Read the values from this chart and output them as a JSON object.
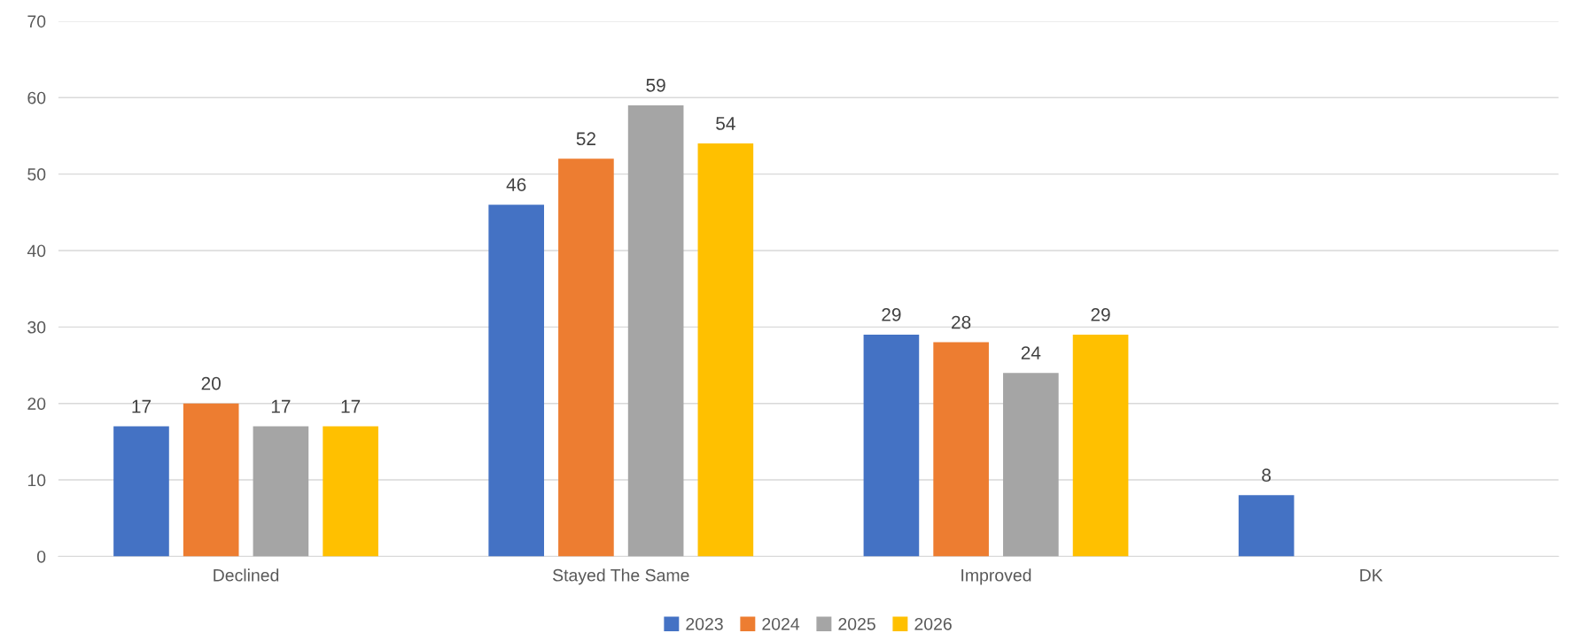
{
  "chart_data": {
    "type": "bar",
    "categories": [
      "Declined",
      "Stayed The Same",
      "Improved",
      "DK"
    ],
    "series": [
      {
        "name": "2023",
        "color": "#4472c4",
        "values": [
          17,
          46,
          29,
          8
        ]
      },
      {
        "name": "2024",
        "color": "#ed7d31",
        "values": [
          20,
          52,
          28,
          null
        ]
      },
      {
        "name": "2025",
        "color": "#a5a5a5",
        "values": [
          17,
          59,
          24,
          null
        ]
      },
      {
        "name": "2026",
        "color": "#ffc000",
        "values": [
          17,
          54,
          29,
          null
        ]
      }
    ],
    "ylim": [
      0,
      70
    ],
    "yticks": [
      0,
      10,
      20,
      30,
      40,
      50,
      60,
      70
    ],
    "grid": "y",
    "legend": "bottom",
    "data_labels": true
  }
}
